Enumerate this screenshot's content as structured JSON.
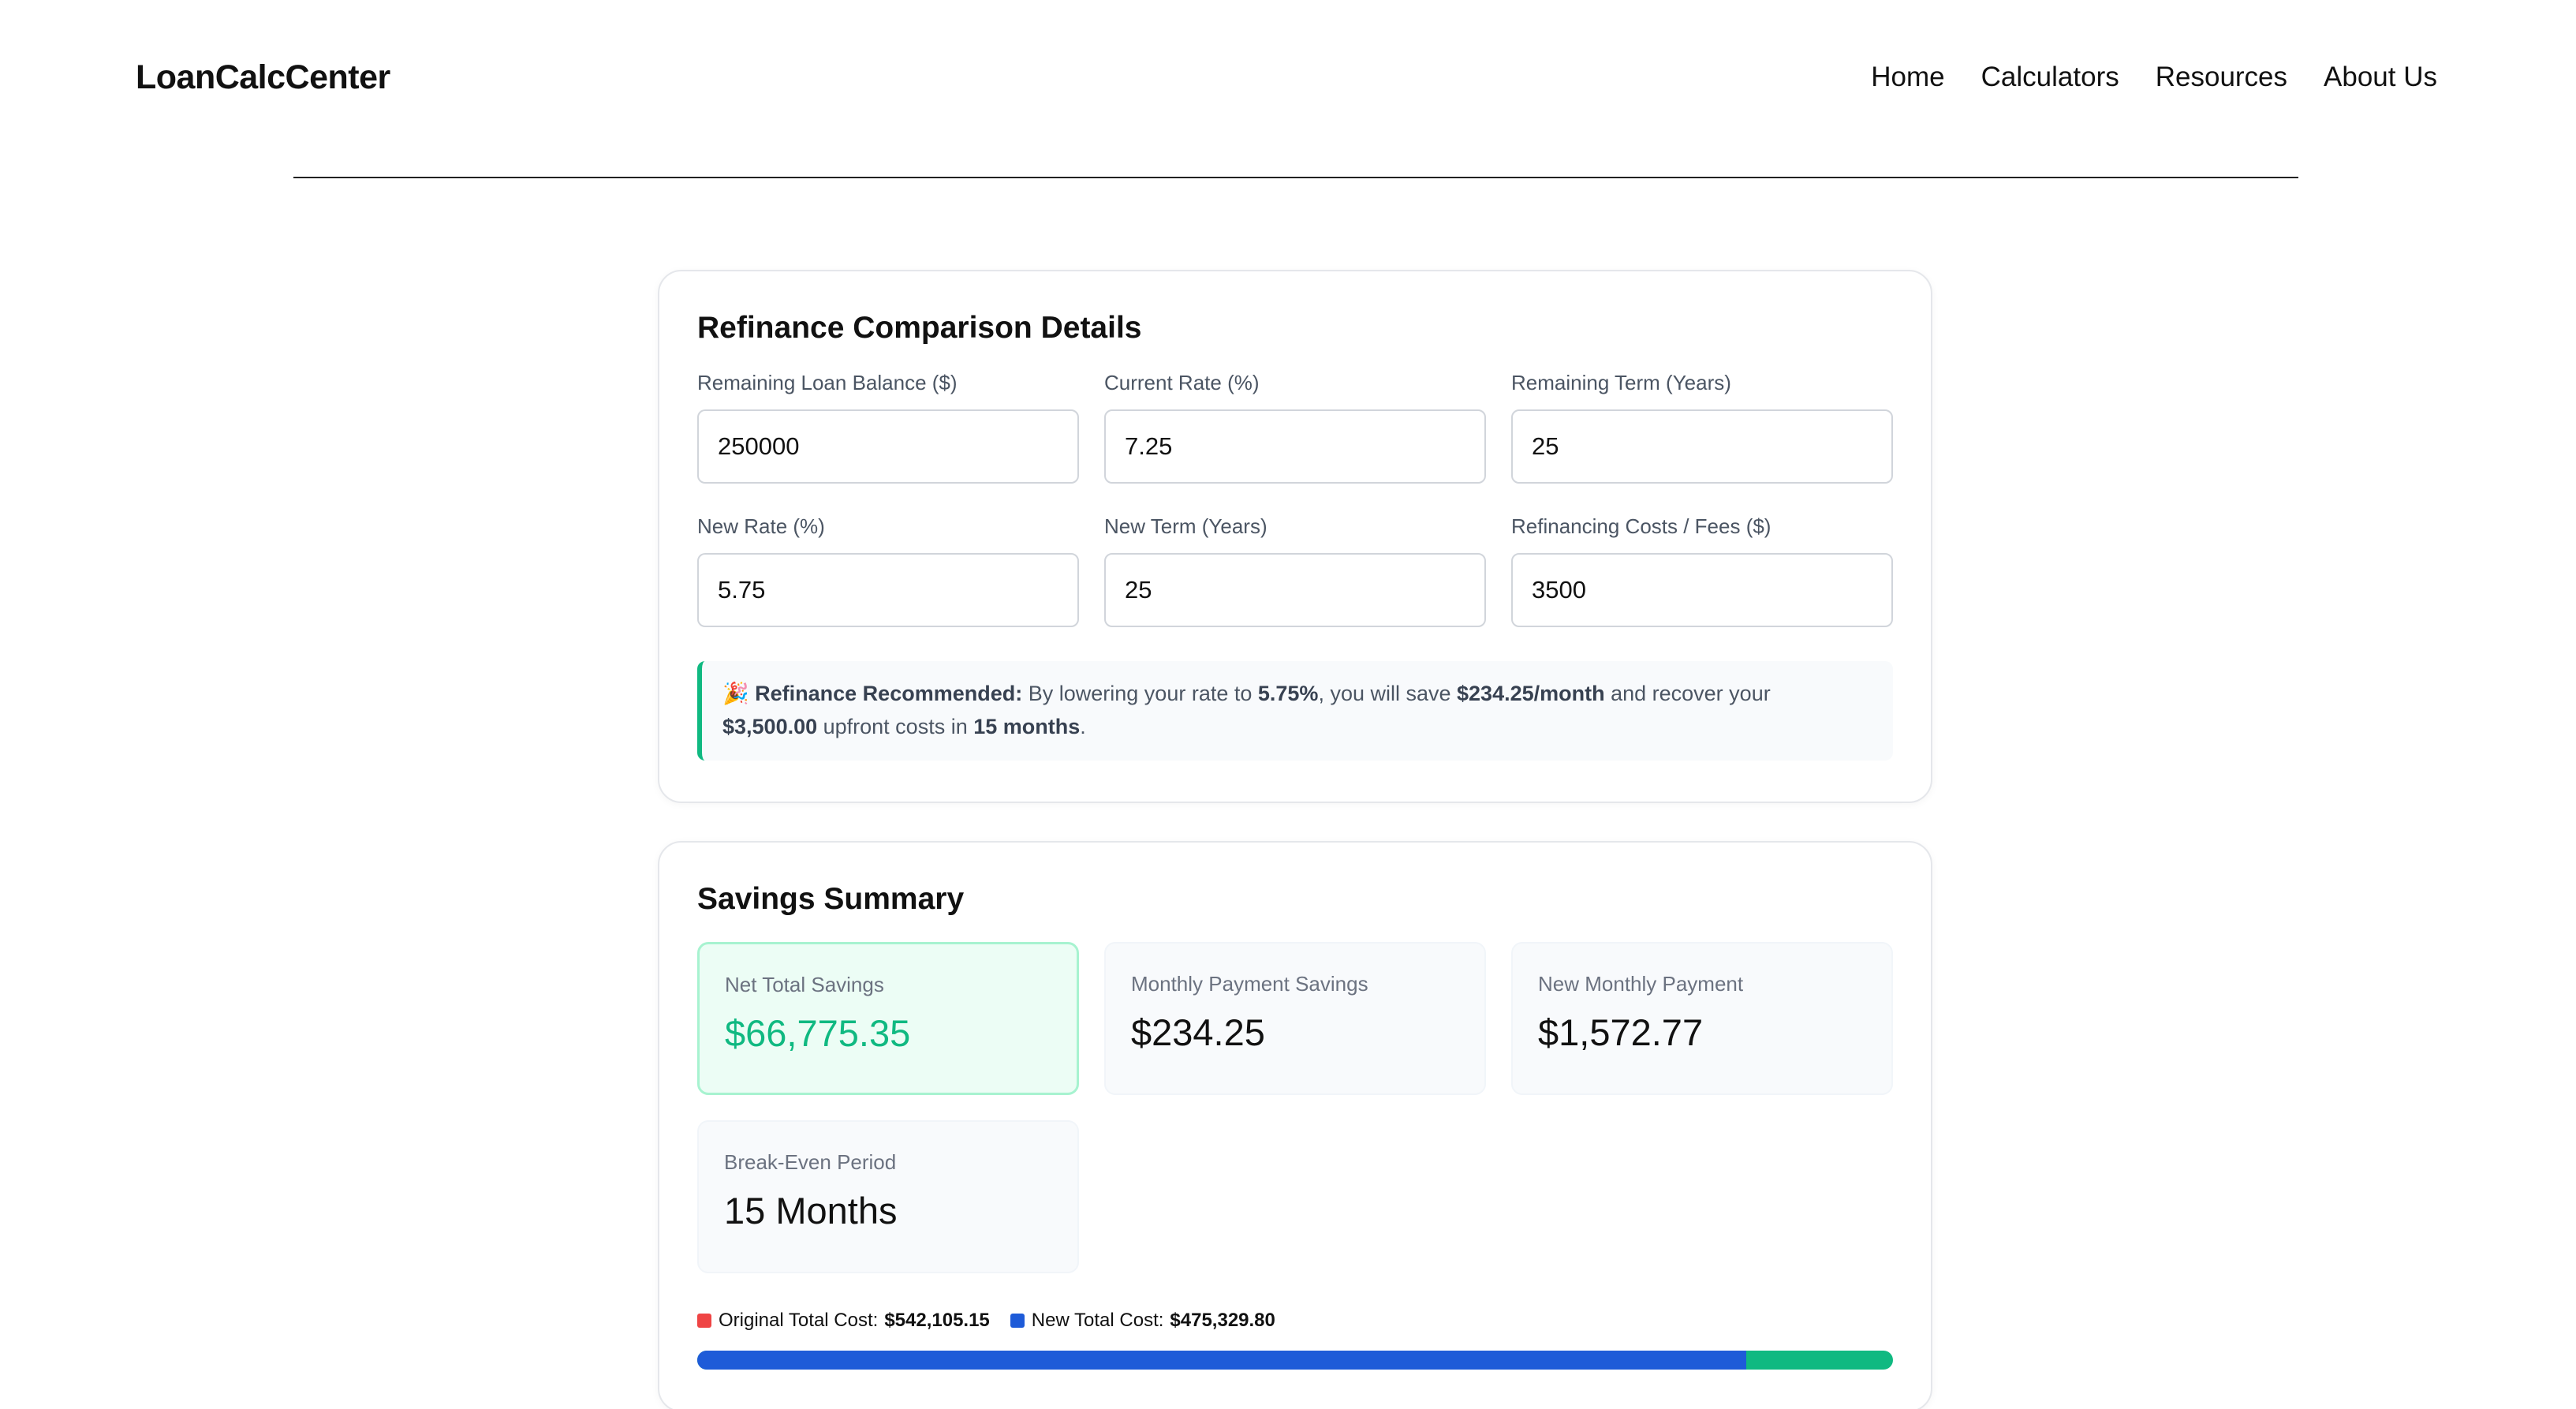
{
  "brand": "LoanCalcCenter",
  "nav": [
    "Home",
    "Calculators",
    "Resources",
    "About Us"
  ],
  "details": {
    "title": "Refinance Comparison Details",
    "fields": [
      {
        "label": "Remaining Loan Balance ($)",
        "value": "250000"
      },
      {
        "label": "Current Rate (%)",
        "value": "7.25"
      },
      {
        "label": "Remaining Term (Years)",
        "value": "25"
      },
      {
        "label": "New Rate (%)",
        "value": "5.75"
      },
      {
        "label": "New Term (Years)",
        "value": "25"
      },
      {
        "label": "Refinancing Costs / Fees ($)",
        "value": "3500"
      }
    ],
    "alert": {
      "emoji": "🎉",
      "heading": "Refinance Recommended:",
      "t1": " By lowering your rate to ",
      "rate": "5.75%",
      "t2": ", you will save ",
      "monthly": "$234.25/month",
      "t3": " and recover your ",
      "costs": "$3,500.00",
      "t4": " upfront costs in ",
      "months": "15 months",
      "t5": "."
    }
  },
  "summary": {
    "title": "Savings Summary",
    "stats": [
      {
        "label": "Net Total Savings",
        "value": "$66,775.35"
      },
      {
        "label": "Monthly Payment Savings",
        "value": "$234.25"
      },
      {
        "label": "New Monthly Payment",
        "value": "$1,572.77"
      },
      {
        "label": "Break-Even Period",
        "value": "15 Months"
      }
    ],
    "legend": {
      "original_label": "Original Total Cost:",
      "original_value": "$542,105.15",
      "original_color": "#ef4444",
      "new_label": "New Total Cost:",
      "new_value": "$475,329.80",
      "new_color": "#1e5bd8"
    },
    "bar": {
      "new_share_percent": 87.7,
      "savings_color": "#10b981"
    }
  }
}
